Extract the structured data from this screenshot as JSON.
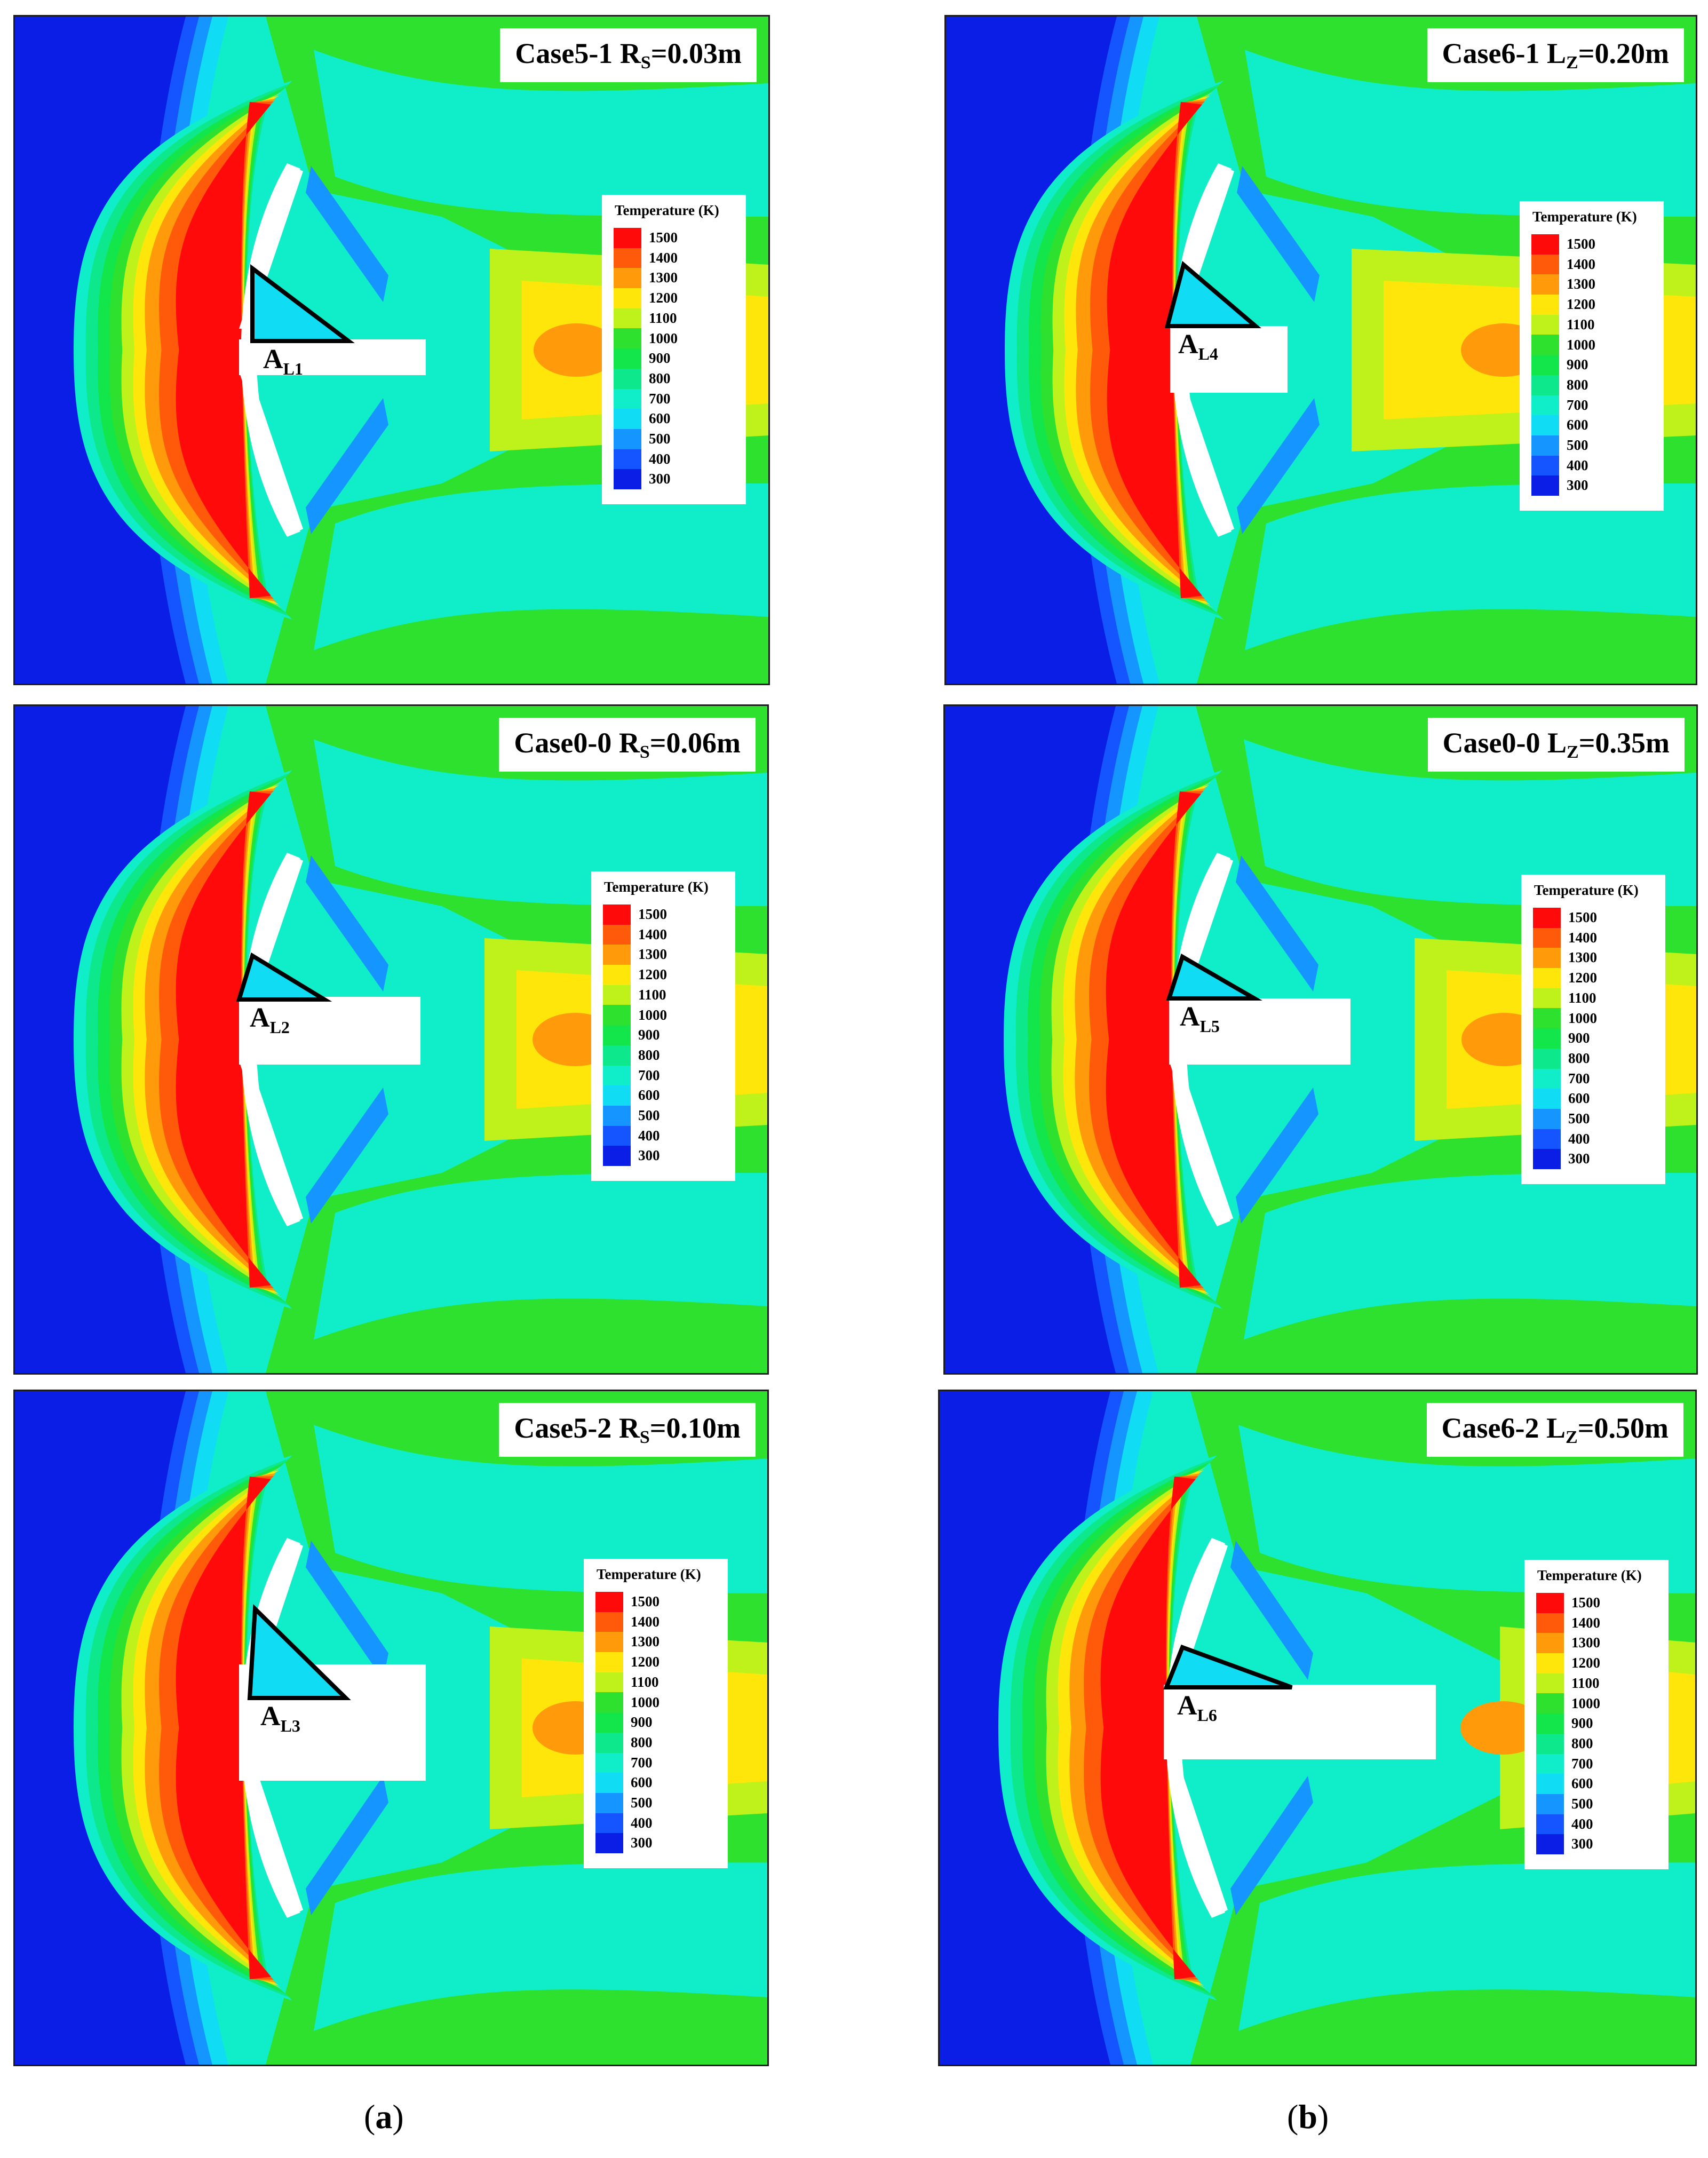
{
  "legend": {
    "title": "Temperature (K)",
    "levels": [
      "1500",
      "1400",
      "1300",
      "1200",
      "1100",
      "1000",
      "900",
      "800",
      "700",
      "600",
      "500",
      "400",
      "300"
    ],
    "colors": [
      "#ff0a0a",
      "#ff5a0a",
      "#ff9a0a",
      "#ffe60a",
      "#bff21a",
      "#2ee12e",
      "#12e64a",
      "#0ee88c",
      "#10edc9",
      "#10dcf4",
      "#1595ff",
      "#1555ff",
      "#0b1ee6"
    ]
  },
  "panels": [
    {
      "case": "Case5-1",
      "var": "R",
      "sub": "S",
      "value": "=0.03m",
      "region": "A",
      "region_sub": "L1"
    },
    {
      "case": "Case6-1",
      "var": "L",
      "sub": "Z",
      "value": "=0.20m",
      "region": "A",
      "region_sub": "L4"
    },
    {
      "case": "Case0-0",
      "var": "R",
      "sub": "S",
      "value": "=0.06m",
      "region": "A",
      "region_sub": "L2"
    },
    {
      "case": "Case0-0",
      "var": "L",
      "sub": "Z",
      "value": "=0.35m",
      "region": "A",
      "region_sub": "L5"
    },
    {
      "case": "Case5-2",
      "var": "R",
      "sub": "S",
      "value": "=0.10m",
      "region": "A",
      "region_sub": "L3"
    },
    {
      "case": "Case6-2",
      "var": "L",
      "sub": "Z",
      "value": "=0.50m",
      "region": "A",
      "region_sub": "L6"
    }
  ],
  "sublabels": {
    "a": "a",
    "b": "b"
  }
}
